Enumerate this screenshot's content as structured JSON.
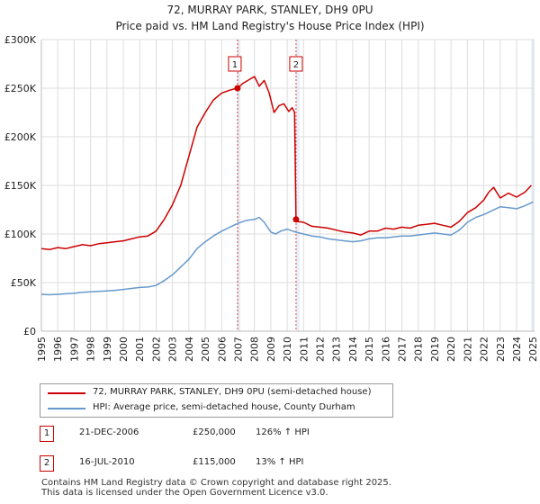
{
  "header": {
    "title": "72, MURRAY PARK, STANLEY, DH9 0PU",
    "subtitle": "Price paid vs. HM Land Registry's House Price Index (HPI)"
  },
  "colors": {
    "price": "#cc0000",
    "hpi": "#6699cc",
    "grid": "#dddddd",
    "shade": "#e8eef8"
  },
  "chart_data": {
    "type": "line",
    "title": "72, MURRAY PARK, STANLEY, DH9 0PU",
    "subtitle": "Price paid vs. HM Land Registry's House Price Index (HPI)",
    "xlabel": "",
    "ylabel": "",
    "xlim": [
      1995,
      2025.1
    ],
    "ylim": [
      0,
      300000
    ],
    "grid": true,
    "x_ticks": [
      1995,
      1996,
      1997,
      1998,
      1999,
      2000,
      2001,
      2002,
      2003,
      2004,
      2005,
      2006,
      2007,
      2008,
      2009,
      2010,
      2011,
      2012,
      2013,
      2014,
      2015,
      2016,
      2017,
      2018,
      2019,
      2020,
      2021,
      2022,
      2023,
      2024,
      2025
    ],
    "y_ticks": [
      0,
      50000,
      100000,
      150000,
      200000,
      250000,
      300000
    ],
    "y_tick_labels": [
      "£0",
      "£50K",
      "£100K",
      "£150K",
      "£200K",
      "£250K",
      "£300K"
    ],
    "shaded_regions": [
      [
        2006.97,
        2007.15
      ],
      [
        2010.54,
        2010.75
      ],
      [
        2024.9,
        2025.1
      ]
    ],
    "series": [
      {
        "name": "72, MURRAY PARK, STANLEY, DH9 0PU (semi-detached house)",
        "color": "#cc0000",
        "x": [
          1995.0,
          1995.5,
          1996.0,
          1996.5,
          1997.0,
          1997.5,
          1998.0,
          1998.5,
          1999.0,
          1999.5,
          2000.0,
          2000.5,
          2001.0,
          2001.5,
          2002.0,
          2002.5,
          2003.0,
          2003.5,
          2004.0,
          2004.5,
          2005.0,
          2005.5,
          2006.0,
          2006.5,
          2006.97,
          2007.3,
          2007.6,
          2008.0,
          2008.3,
          2008.6,
          2008.9,
          2009.2,
          2009.5,
          2009.8,
          2010.1,
          2010.3,
          2010.45,
          2010.54,
          2010.6,
          2011.0,
          2011.5,
          2012.0,
          2012.5,
          2013.0,
          2013.5,
          2014.0,
          2014.5,
          2015.0,
          2015.5,
          2016.0,
          2016.5,
          2017.0,
          2017.5,
          2018.0,
          2018.5,
          2019.0,
          2019.5,
          2020.0,
          2020.5,
          2021.0,
          2021.5,
          2022.0,
          2022.3,
          2022.6,
          2023.0,
          2023.5,
          2024.0,
          2024.5,
          2024.9
        ],
        "y": [
          85000,
          84000,
          86000,
          85000,
          87000,
          89000,
          88000,
          90000,
          91000,
          92000,
          93000,
          95000,
          97000,
          98000,
          103000,
          115000,
          130000,
          150000,
          180000,
          210000,
          225000,
          238000,
          245000,
          248000,
          250000,
          255000,
          258000,
          262000,
          252000,
          258000,
          245000,
          225000,
          232000,
          234000,
          226000,
          230000,
          225000,
          115000,
          113000,
          112000,
          108000,
          107000,
          106000,
          104000,
          102000,
          101000,
          99000,
          103000,
          103000,
          106000,
          105000,
          107000,
          106000,
          109000,
          110000,
          111000,
          109000,
          107000,
          113000,
          122000,
          127000,
          135000,
          143000,
          148000,
          137000,
          142000,
          138000,
          143000,
          150000
        ]
      },
      {
        "name": "HPI: Average price, semi-detached house, County Durham",
        "color": "#6699cc",
        "x": [
          1995.0,
          1995.5,
          1996.0,
          1996.5,
          1997.0,
          1997.5,
          1998.0,
          1998.5,
          1999.0,
          1999.5,
          2000.0,
          2000.5,
          2001.0,
          2001.5,
          2002.0,
          2002.5,
          2003.0,
          2003.5,
          2004.0,
          2004.5,
          2005.0,
          2005.5,
          2006.0,
          2006.5,
          2007.0,
          2007.5,
          2008.0,
          2008.3,
          2008.6,
          2009.0,
          2009.3,
          2009.6,
          2010.0,
          2010.5,
          2011.0,
          2011.5,
          2012.0,
          2012.5,
          2013.0,
          2013.5,
          2014.0,
          2014.5,
          2015.0,
          2015.5,
          2016.0,
          2016.5,
          2017.0,
          2017.5,
          2018.0,
          2018.5,
          2019.0,
          2019.5,
          2020.0,
          2020.5,
          2021.0,
          2021.5,
          2022.0,
          2022.5,
          2023.0,
          2023.5,
          2024.0,
          2024.5,
          2025.0
        ],
        "y": [
          38000,
          37500,
          38000,
          38500,
          39000,
          40000,
          40500,
          41000,
          41500,
          42000,
          43000,
          44000,
          45000,
          45500,
          47000,
          52000,
          58000,
          66000,
          74000,
          85000,
          92000,
          98000,
          103000,
          107000,
          111000,
          114000,
          115000,
          117000,
          112000,
          102000,
          100000,
          103000,
          105000,
          102000,
          100000,
          98000,
          97000,
          95000,
          94000,
          93000,
          92000,
          93000,
          95000,
          96000,
          96000,
          97000,
          98000,
          98000,
          99000,
          100000,
          101000,
          100000,
          99000,
          104000,
          112000,
          117000,
          120000,
          124000,
          128000,
          127000,
          126000,
          129000,
          133000
        ]
      }
    ],
    "annotations": [
      {
        "label": "1",
        "x": 2006.97,
        "y": 250000
      },
      {
        "label": "2",
        "x": 2010.54,
        "y": 115000
      }
    ]
  },
  "legend": {
    "items": [
      {
        "label": "72, MURRAY PARK, STANLEY, DH9 0PU (semi-detached house)"
      },
      {
        "label": "HPI: Average price, semi-detached house, County Durham"
      }
    ]
  },
  "transactions": [
    {
      "num": "1",
      "date": "21-DEC-2006",
      "price": "£250,000",
      "hpi": "126% ↑ HPI"
    },
    {
      "num": "2",
      "date": "16-JUL-2010",
      "price": "£115,000",
      "hpi": "13% ↑ HPI"
    }
  ],
  "footer": {
    "line1": "Contains HM Land Registry data © Crown copyright and database right 2025.",
    "line2": "This data is licensed under the Open Government Licence v3.0."
  }
}
